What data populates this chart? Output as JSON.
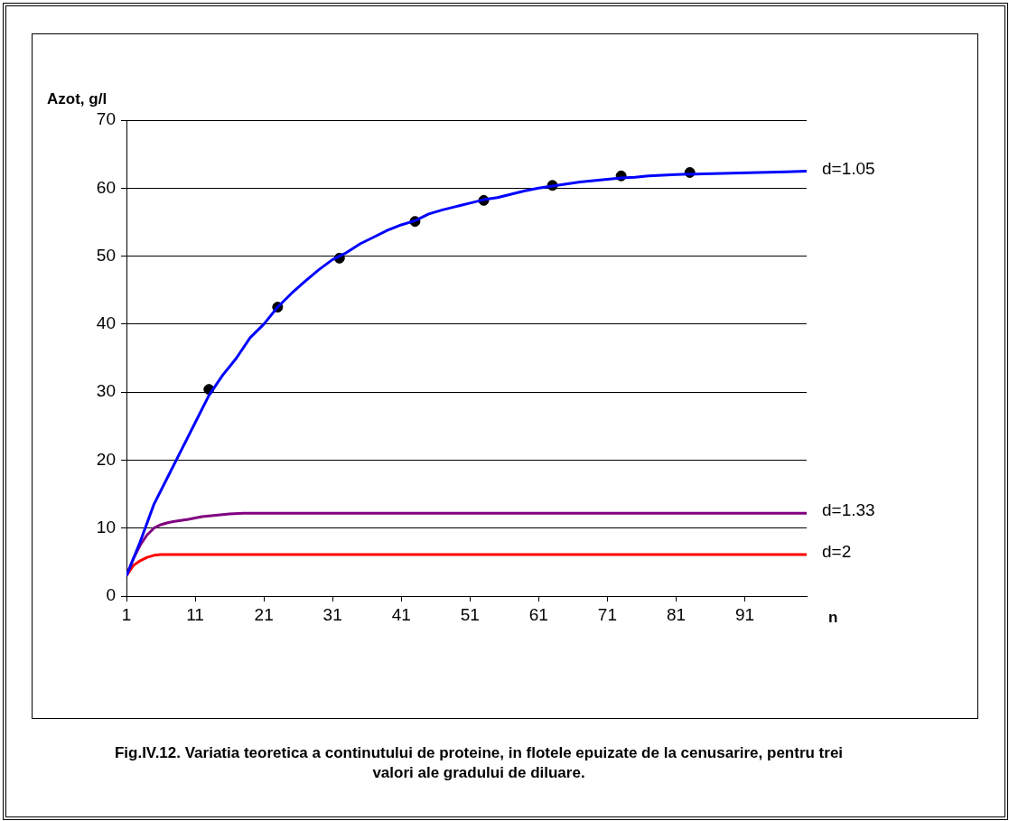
{
  "chart_data": {
    "type": "line",
    "title": "Fig.IV.12. Variatia teoretica a continutului de proteine, in flotele epuizate de la cenusarire, pentru trei valori ale gradului de diluare.",
    "xlabel": "n",
    "ylabel": "Azot, g/l",
    "xlim": [
      1,
      100
    ],
    "xticks": [
      1,
      11,
      21,
      31,
      41,
      51,
      61,
      71,
      81,
      91
    ],
    "ylim": [
      0,
      70
    ],
    "yticks": [
      0,
      10,
      20,
      30,
      40,
      50,
      60,
      70
    ],
    "grid": "y",
    "legend": false,
    "marker": "none",
    "line_style": "solid",
    "series": [
      {
        "name": "d=1.05",
        "color": "#0000ff",
        "x": [
          1,
          3,
          5,
          7,
          9,
          11,
          13,
          15,
          17,
          19,
          21,
          23,
          25,
          27,
          29,
          31,
          33,
          35,
          37,
          39,
          41,
          43,
          45,
          47,
          49,
          51,
          53,
          55,
          57,
          59,
          61,
          63,
          65,
          67,
          69,
          71,
          73,
          75,
          77,
          79,
          81,
          85,
          89,
          93,
          97,
          100
        ],
        "values": [
          3,
          8,
          13.5,
          17.5,
          21.5,
          25.5,
          29.5,
          32.5,
          35,
          38,
          40,
          42.5,
          44.5,
          46.3,
          48,
          49.5,
          50.5,
          51.8,
          52.8,
          53.8,
          54.6,
          55.2,
          56.2,
          56.8,
          57.3,
          57.8,
          58.3,
          58.6,
          59.1,
          59.6,
          60,
          60.3,
          60.6,
          60.9,
          61.1,
          61.3,
          61.5,
          61.6,
          61.8,
          61.9,
          62,
          62.1,
          62.2,
          62.3,
          62.4,
          62.5
        ]
      },
      {
        "name": "d=1.33",
        "color": "#800080",
        "x": [
          1,
          2,
          3,
          4,
          5,
          6,
          7,
          8,
          10,
          12,
          14,
          16,
          18,
          100
        ],
        "values": [
          3,
          5.5,
          7.5,
          9,
          10,
          10.5,
          10.8,
          11,
          11.3,
          11.7,
          11.9,
          12.1,
          12.2,
          12.2
        ]
      },
      {
        "name": "d=2",
        "color": "#ff0000",
        "x": [
          1,
          2,
          3,
          4,
          5,
          6,
          100
        ],
        "values": [
          3,
          4.5,
          5.2,
          5.7,
          6,
          6.1,
          6.1
        ]
      },
      {
        "type": "scatter",
        "marker": "circle",
        "color": "#000000",
        "x": [
          13,
          23,
          32,
          43,
          53,
          63,
          73,
          83
        ],
        "values": [
          30.4,
          42.5,
          49.7,
          55.1,
          58.2,
          60.4,
          61.8,
          62.3
        ]
      }
    ]
  }
}
